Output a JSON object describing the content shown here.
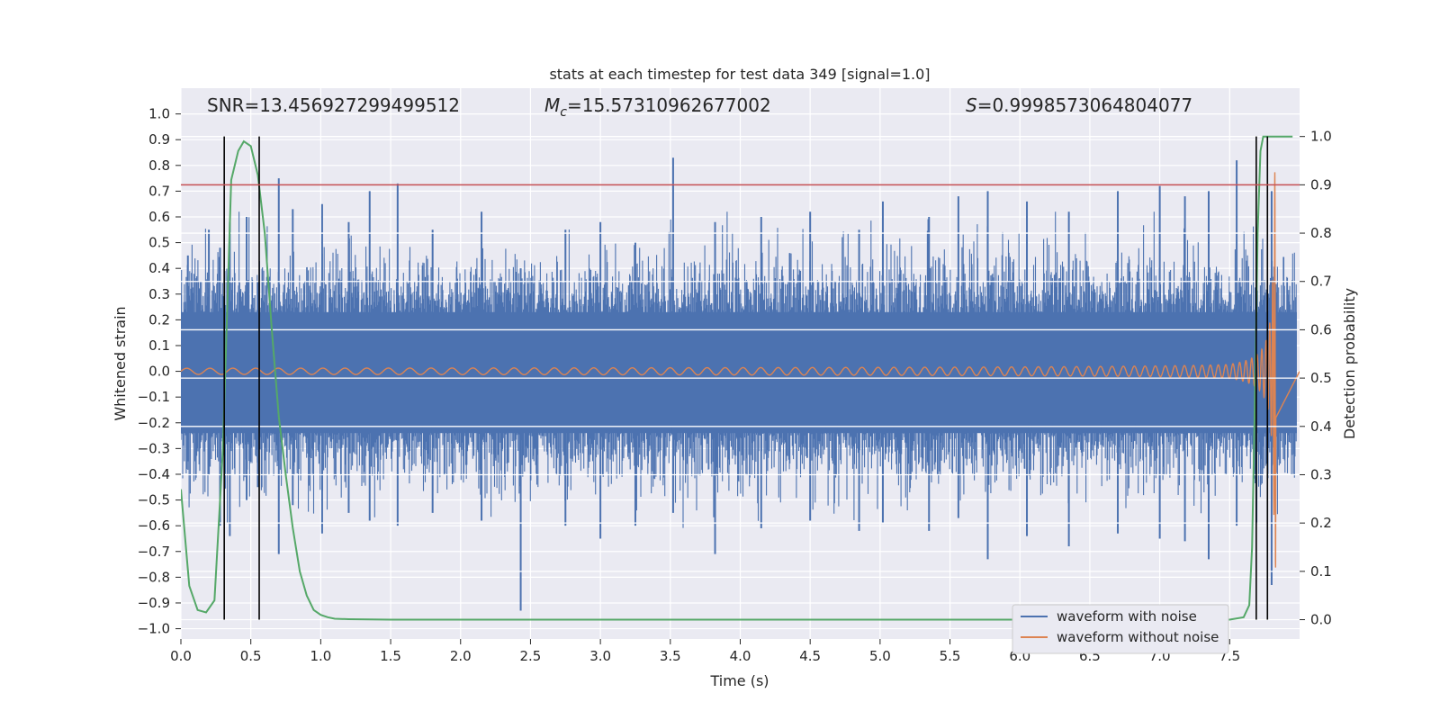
{
  "chart_data": {
    "type": "line",
    "title": "stats at each timestep for test data 349 [signal=1.0]",
    "xlabel": "Time (s)",
    "ylabel_left": "Whitened strain",
    "ylabel_right": "Detection probability",
    "xlim": [
      0.0,
      8.0
    ],
    "ylim_left": [
      -1.04,
      1.1
    ],
    "ylim_right": [
      -0.04,
      1.1
    ],
    "x_ticks": [
      0.0,
      0.5,
      1.0,
      1.5,
      2.0,
      2.5,
      3.0,
      3.5,
      4.0,
      4.5,
      5.0,
      5.5,
      6.0,
      6.5,
      7.0,
      7.5
    ],
    "x_tick_labels": [
      "0.0",
      "0.5",
      "1.0",
      "1.5",
      "2.0",
      "2.5",
      "3.0",
      "3.5",
      "4.0",
      "4.5",
      "5.0",
      "5.5",
      "6.0",
      "6.5",
      "7.0",
      "7.5"
    ],
    "left_ticks": [
      1.0,
      0.9,
      0.8,
      0.7,
      0.6,
      0.5,
      0.4,
      0.3,
      0.2,
      0.1,
      0.0,
      -0.1,
      -0.2,
      -0.3,
      -0.4,
      -0.5,
      -0.6,
      -0.7,
      -0.8,
      -0.9,
      -1.0
    ],
    "left_tick_labels": [
      "1.0",
      "0.9",
      "0.8",
      "0.7",
      "0.6",
      "0.5",
      "0.4",
      "0.3",
      "0.2",
      "0.1",
      "0.0",
      "−0.1",
      "−0.2",
      "−0.3",
      "−0.4",
      "−0.5",
      "−0.6",
      "−0.7",
      "−0.8",
      "−0.9",
      "−1.0"
    ],
    "right_ticks": [
      1.0,
      0.9,
      0.8,
      0.7,
      0.6,
      0.5,
      0.4,
      0.3,
      0.2,
      0.1,
      0.0
    ],
    "right_tick_labels": [
      "1.0",
      "0.9",
      "0.8",
      "0.7",
      "0.6",
      "0.5",
      "0.4",
      "0.3",
      "0.2",
      "0.1",
      "0.0"
    ],
    "annotations": {
      "snr": "SNR=13.456927299499512",
      "mc_symbol": "M",
      "mc_sub": "c",
      "mc_value": "=15.57310962677002",
      "s_symbol": "S",
      "s_value": "=0.9998573064804077"
    },
    "threshold": {
      "value_right": 0.9,
      "color": "#c44e52"
    },
    "vertical_markers": [
      0.31,
      0.56,
      7.69,
      7.77
    ],
    "series": [
      {
        "name": "waveform with noise",
        "color": "#4c72b0",
        "axis": "left",
        "spikes": [
          {
            "x": 0.05,
            "top": 0.45,
            "bottom": -0.35
          },
          {
            "x": 0.2,
            "top": 0.55,
            "bottom": -0.4
          },
          {
            "x": 0.28,
            "top": 0.48,
            "bottom": -0.6
          },
          {
            "x": 0.35,
            "top": 0.58,
            "bottom": -0.64
          },
          {
            "x": 0.47,
            "top": 0.6,
            "bottom": -0.5
          },
          {
            "x": 0.55,
            "top": 0.35,
            "bottom": -0.45
          },
          {
            "x": 0.7,
            "top": 0.75,
            "bottom": -0.71
          },
          {
            "x": 0.8,
            "top": 0.63,
            "bottom": -0.52
          },
          {
            "x": 1.01,
            "top": 0.65,
            "bottom": -0.63
          },
          {
            "x": 1.2,
            "top": 0.58,
            "bottom": -0.55
          },
          {
            "x": 1.35,
            "top": 0.7,
            "bottom": -0.58
          },
          {
            "x": 1.55,
            "top": 0.73,
            "bottom": -0.6
          },
          {
            "x": 1.8,
            "top": 0.55,
            "bottom": -0.55
          },
          {
            "x": 2.15,
            "top": 0.62,
            "bottom": -0.58
          },
          {
            "x": 2.43,
            "top": 0.4,
            "bottom": -0.93
          },
          {
            "x": 2.75,
            "top": 0.55,
            "bottom": -0.6
          },
          {
            "x": 3.0,
            "top": 0.58,
            "bottom": -0.65
          },
          {
            "x": 3.25,
            "top": 0.5,
            "bottom": -0.6
          },
          {
            "x": 3.52,
            "top": 0.83,
            "bottom": -0.55
          },
          {
            "x": 3.82,
            "top": 0.58,
            "bottom": -0.71
          },
          {
            "x": 4.15,
            "top": 0.6,
            "bottom": -0.61
          },
          {
            "x": 4.5,
            "top": 0.62,
            "bottom": -0.58
          },
          {
            "x": 4.85,
            "top": 0.55,
            "bottom": -0.62
          },
          {
            "x": 5.02,
            "top": 0.66,
            "bottom": -0.59
          },
          {
            "x": 5.35,
            "top": 0.6,
            "bottom": -0.62
          },
          {
            "x": 5.56,
            "top": 0.68,
            "bottom": -0.57
          },
          {
            "x": 5.77,
            "top": 0.7,
            "bottom": -0.73
          },
          {
            "x": 6.05,
            "top": 0.66,
            "bottom": -0.64
          },
          {
            "x": 6.35,
            "top": 0.62,
            "bottom": -0.68
          },
          {
            "x": 6.7,
            "top": 0.7,
            "bottom": -0.63
          },
          {
            "x": 7.0,
            "top": 0.72,
            "bottom": -0.65
          },
          {
            "x": 7.18,
            "top": 0.68,
            "bottom": -0.66
          },
          {
            "x": 7.35,
            "top": 0.7,
            "bottom": -0.73
          },
          {
            "x": 7.55,
            "top": 0.82,
            "bottom": -0.6
          },
          {
            "x": 7.8,
            "top": 0.7,
            "bottom": -0.83
          }
        ]
      },
      {
        "name": "waveform without noise",
        "color": "#dd8452",
        "axis": "left",
        "chirp": {
          "t_merge": 7.83,
          "t_end": 7.83,
          "amp_start": 0.012,
          "amp_peak": 0.78,
          "freq_start": 6.0
        }
      },
      {
        "name": "detection probability",
        "color": "#55a868",
        "axis": "right",
        "x": [
          0.0,
          0.06,
          0.12,
          0.18,
          0.24,
          0.3,
          0.36,
          0.41,
          0.45,
          0.5,
          0.55,
          0.6,
          0.65,
          0.7,
          0.75,
          0.8,
          0.85,
          0.9,
          0.95,
          1.0,
          1.05,
          1.1,
          1.2,
          1.5,
          2.0,
          3.0,
          4.0,
          5.0,
          6.0,
          7.0,
          7.5,
          7.6,
          7.64,
          7.66,
          7.68,
          7.7,
          7.72,
          7.74,
          7.76,
          7.8,
          7.95
        ],
        "y": [
          0.27,
          0.07,
          0.02,
          0.015,
          0.04,
          0.35,
          0.91,
          0.97,
          0.99,
          0.98,
          0.92,
          0.8,
          0.6,
          0.42,
          0.3,
          0.19,
          0.1,
          0.05,
          0.02,
          0.01,
          0.005,
          0.002,
          0.001,
          0.0,
          0.0,
          0.0,
          0.0,
          0.0,
          0.0,
          0.0,
          0.0,
          0.005,
          0.03,
          0.15,
          0.45,
          0.8,
          0.97,
          1.0,
          1.0,
          1.0,
          1.0
        ]
      }
    ],
    "legend": {
      "placement": "lower-right",
      "entries": [
        "waveform with noise",
        "waveform without noise"
      ]
    }
  }
}
